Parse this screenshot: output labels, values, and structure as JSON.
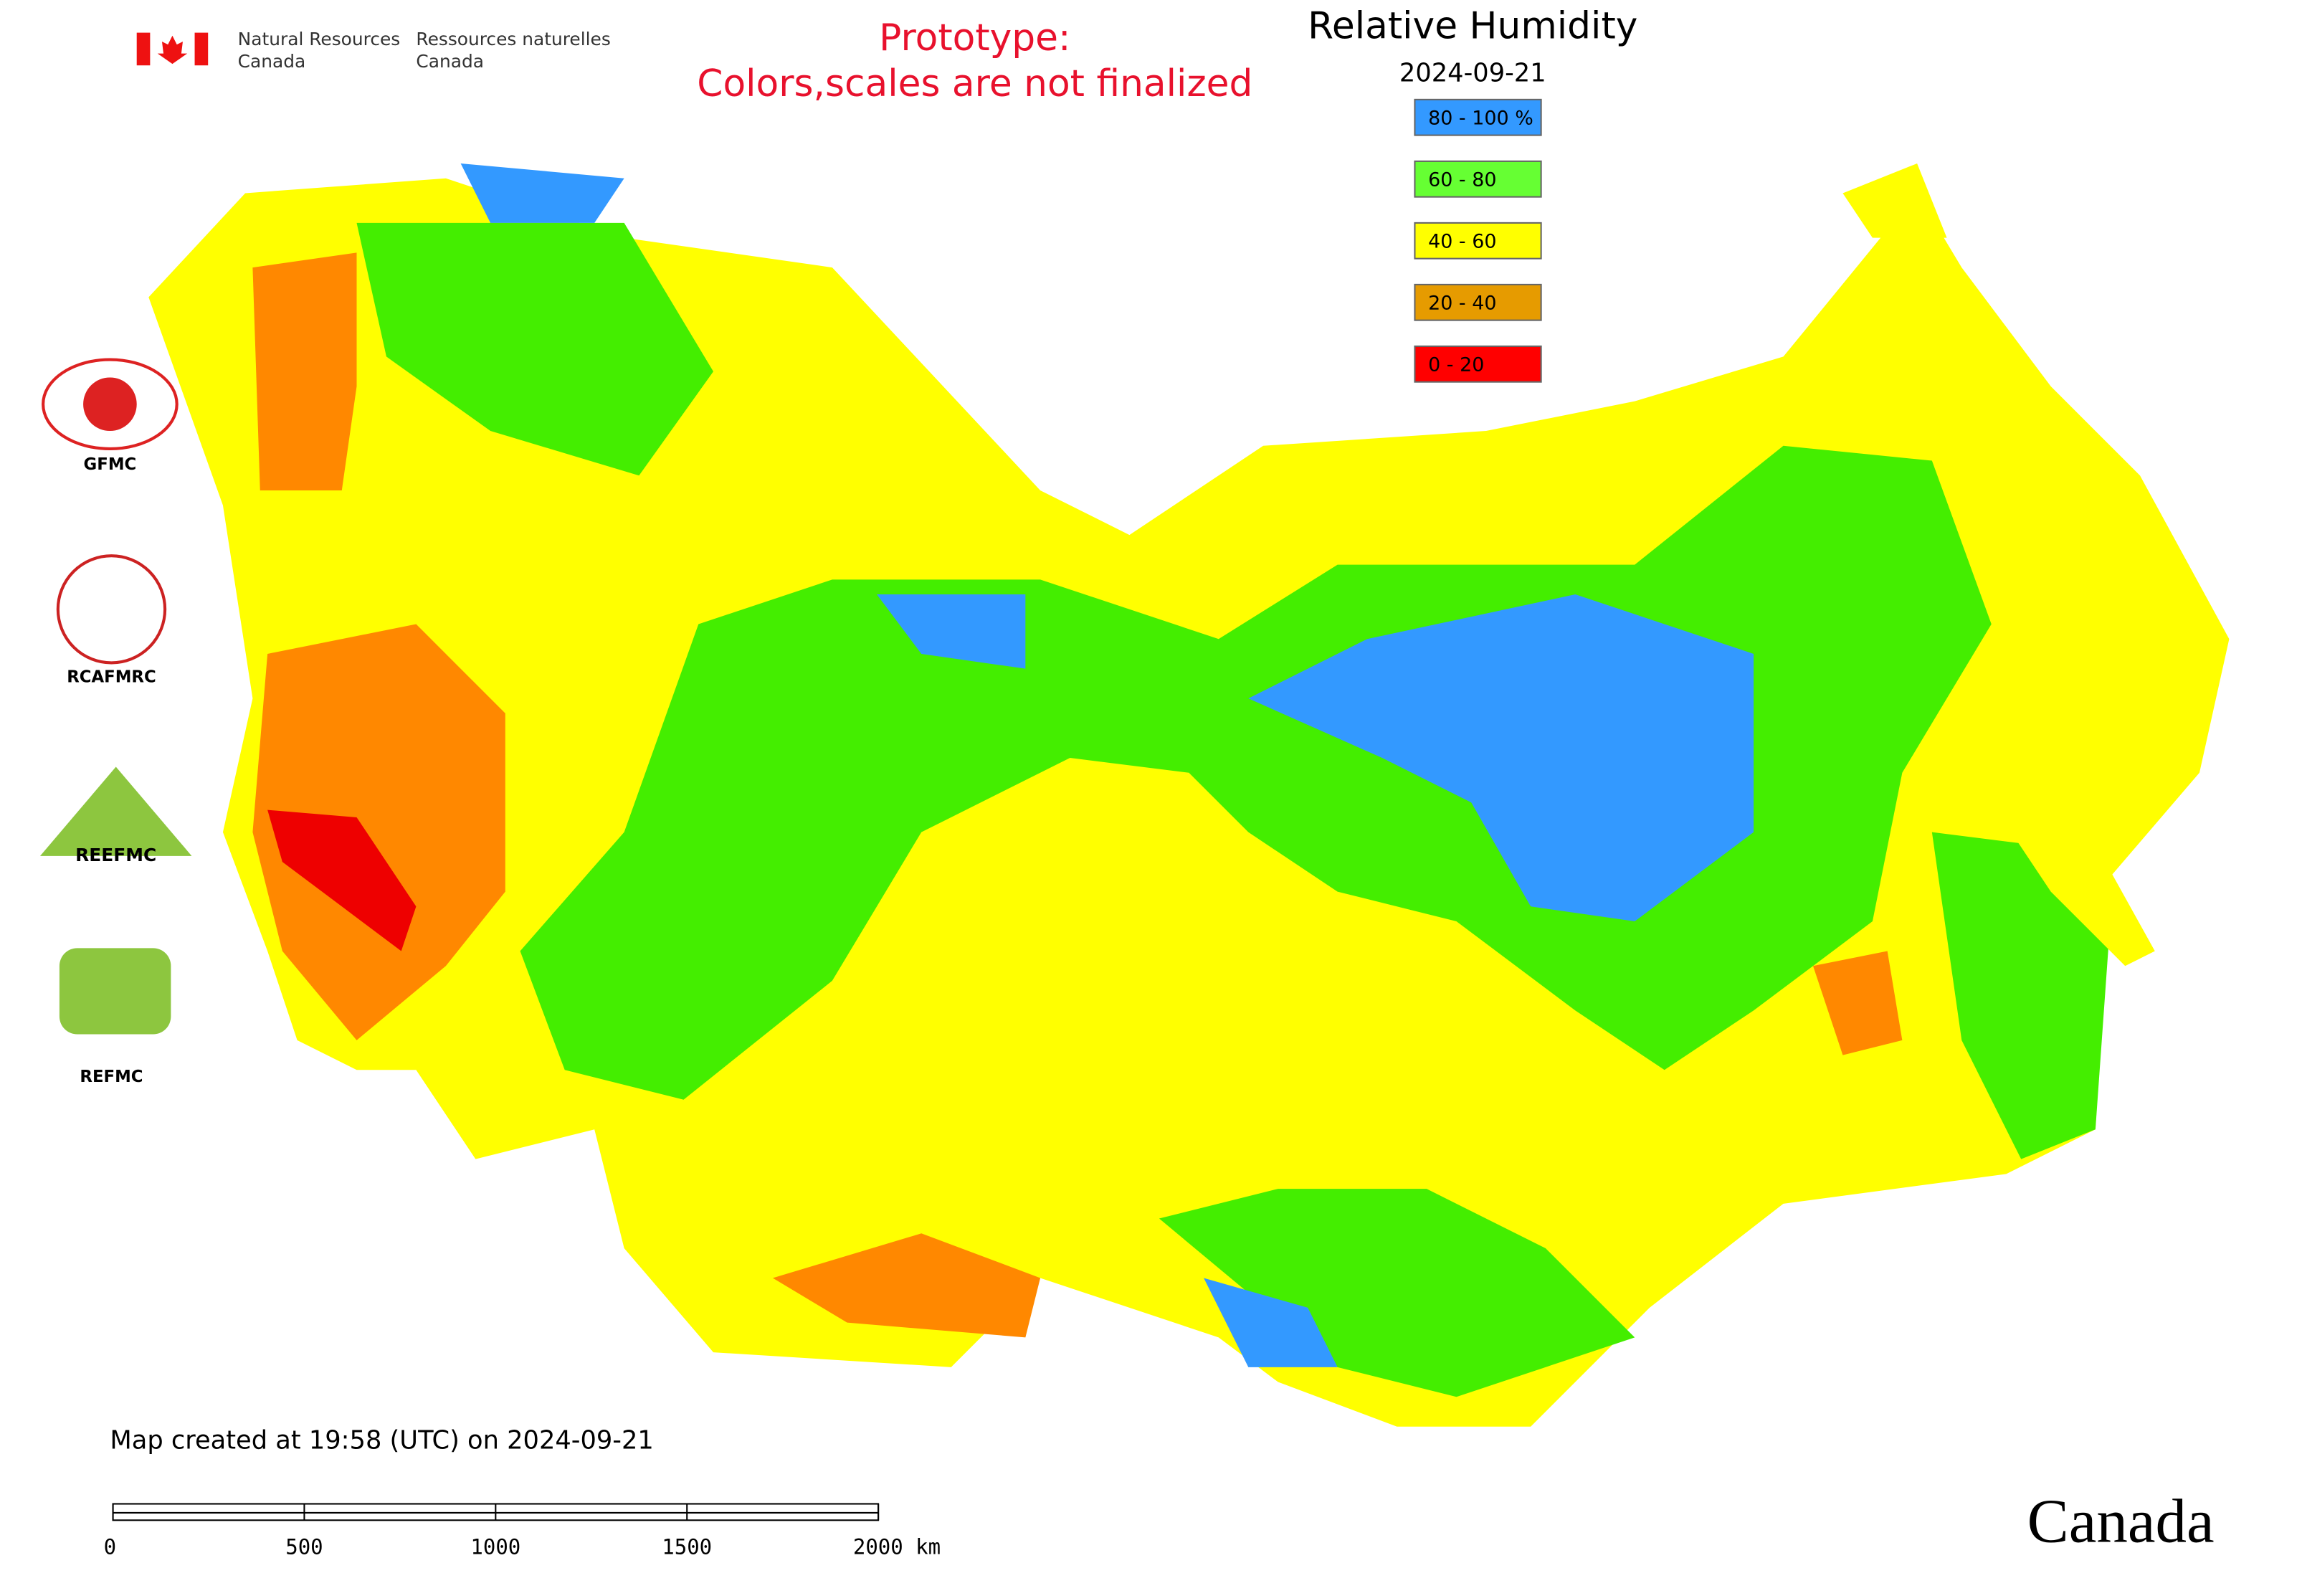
{
  "header": {
    "agency_en": [
      "Natural Resources",
      "Canada"
    ],
    "agency_fr": [
      "Ressources naturelles",
      "Canada"
    ],
    "notice": [
      "Prototype:",
      "Colors,scales are not finalized"
    ]
  },
  "map": {
    "title": "Relative Humidity",
    "date": "2024-09-21",
    "legend": [
      {
        "label": "80 - 100 %",
        "color": "#3399ff"
      },
      {
        "label": "60 - 80",
        "color": "#66ff33"
      },
      {
        "label": "40 - 60",
        "color": "#ffff00"
      },
      {
        "label": "20 - 40",
        "color": "#e69b00"
      },
      {
        "label": "0 - 20",
        "color": "#ff0000"
      }
    ],
    "centers": [
      "GFMC",
      "RCAFMRC",
      "REEFMC",
      "REFMC"
    ],
    "footer": "Map created at 19:58 (UTC) on 2024-09-21",
    "scale_bar": [
      "0",
      "500",
      "1000",
      "1500",
      "2000 km"
    ],
    "wordmark": "Canada"
  }
}
